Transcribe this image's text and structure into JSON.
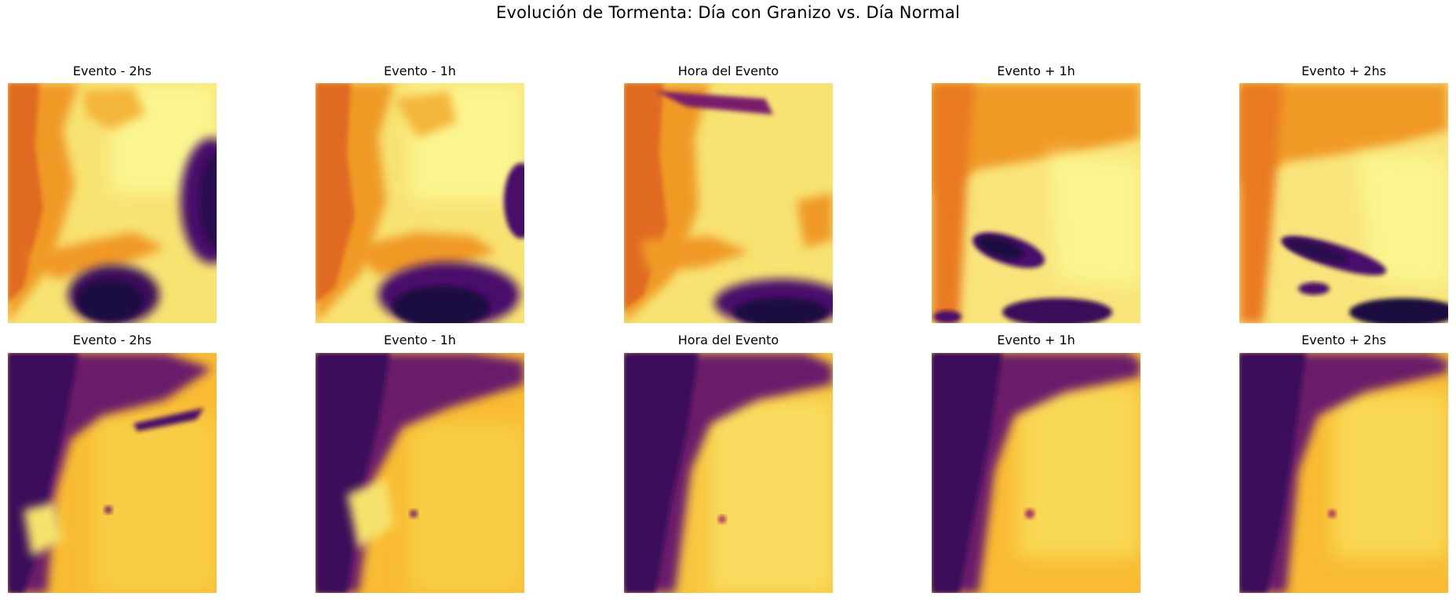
{
  "figure": {
    "title": "Evolución de Tormenta: Día con Granizo vs. Día Normal"
  },
  "colormap": {
    "name": "inferno",
    "stops": [
      "#1b0c41",
      "#4a0c6b",
      "#781c6d",
      "#a52c60",
      "#cf4446",
      "#ed6925",
      "#fb9b06",
      "#f7d13d",
      "#fcffa4"
    ]
  },
  "rows": [
    {
      "row": "hail_day",
      "panels": [
        {
          "title": "Evento - 2hs",
          "storm": "large dark cell bottom-center and right edge"
        },
        {
          "title": "Evento - 1h",
          "storm": "dark cell bottom-center expanding"
        },
        {
          "title": "Hora del Evento",
          "storm": "dark band bottom-right, streak top"
        },
        {
          "title": "Evento + 1h",
          "storm": "elongated dark cell center-left, band bottom"
        },
        {
          "title": "Evento + 2hs",
          "storm": "elongated dark cell center, band bottom-right"
        }
      ]
    },
    {
      "row": "normal_day",
      "panels": [
        {
          "title": "Evento - 2hs",
          "storm": "mountains dark on left, clear plains"
        },
        {
          "title": "Evento - 1h",
          "storm": "mountains dark on left, clear plains"
        },
        {
          "title": "Hora del Evento",
          "storm": "mountains dark on left, clear plains"
        },
        {
          "title": "Evento + 1h",
          "storm": "mountains dark on left, clear plains"
        },
        {
          "title": "Evento + 2hs",
          "storm": "mountains dark on left, clear plains"
        }
      ]
    }
  ]
}
